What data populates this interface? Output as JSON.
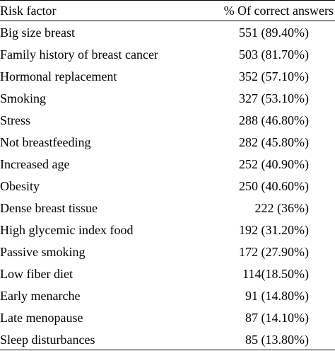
{
  "table": {
    "headers": {
      "factor": "Risk factor",
      "answers": "% Of correct answers"
    },
    "rows": [
      {
        "factor": "Big size breast",
        "answers": "551 (89.40%)"
      },
      {
        "factor": "Family history of breast cancer",
        "answers": "503 (81.70%)"
      },
      {
        "factor": "Hormonal replacement",
        "answers": "352 (57.10%)"
      },
      {
        "factor": "Smoking",
        "answers": "327 (53.10%)"
      },
      {
        "factor": "Stress",
        "answers": "288 (46.80%)"
      },
      {
        "factor": "Not breastfeeding",
        "answers": "282 (45.80%)"
      },
      {
        "factor": "Increased age",
        "answers": "252 (40.90%)"
      },
      {
        "factor": "Obesity",
        "answers": "250 (40.60%)"
      },
      {
        "factor": "Dense breast tissue",
        "answers": "222 (36%)"
      },
      {
        "factor": "High glycemic index food",
        "answers": "192 (31.20%)"
      },
      {
        "factor": "Passive smoking",
        "answers": "172 (27.90%)"
      },
      {
        "factor": "Low fiber diet",
        "answers": "114(18.50%)"
      },
      {
        "factor": "Early menarche",
        "answers": "91 (14.80%)"
      },
      {
        "factor": "Late menopause",
        "answers": "87 (14.10%)"
      },
      {
        "factor": "Sleep disturbances",
        "answers": "85 (13.80%)"
      }
    ]
  }
}
